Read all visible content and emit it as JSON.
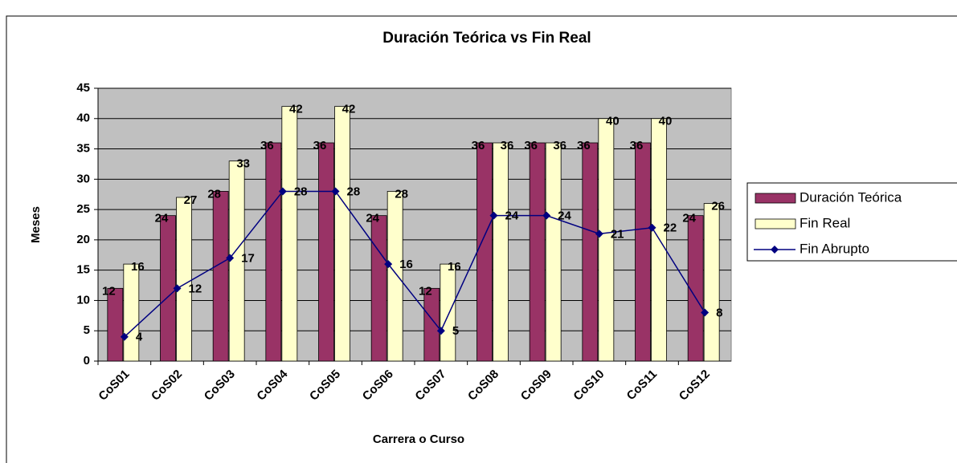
{
  "chart_data": {
    "type": "bar",
    "title": "Duración Teórica vs Fin Real",
    "x_label": "Carrera o Curso",
    "y_label": "Meses",
    "categories": [
      "CoS01",
      "CoS02",
      "CoS03",
      "CoS04",
      "CoS05",
      "CoS06",
      "CoS07",
      "CoS08",
      "CoS09",
      "CoS10",
      "CoS11",
      "CoS12"
    ],
    "series": [
      {
        "name": "Duración Teórica",
        "type": "bar",
        "color": "#993366",
        "values": [
          12,
          24,
          28,
          36,
          36,
          24,
          12,
          36,
          36,
          36,
          36,
          24
        ]
      },
      {
        "name": "Fin Real",
        "type": "bar",
        "color": "#FFFFCC",
        "values": [
          16,
          27,
          33,
          42,
          42,
          28,
          16,
          36,
          36,
          40,
          40,
          26
        ]
      },
      {
        "name": "Fin Abrupto",
        "type": "line",
        "color": "#000080",
        "values": [
          4,
          12,
          17,
          28,
          28,
          16,
          5,
          24,
          24,
          21,
          22,
          8
        ]
      }
    ],
    "ylim": [
      0,
      45
    ],
    "yticks": [
      0,
      5,
      10,
      15,
      20,
      25,
      30,
      35,
      40,
      45
    ],
    "grid": true,
    "legend": "right"
  }
}
